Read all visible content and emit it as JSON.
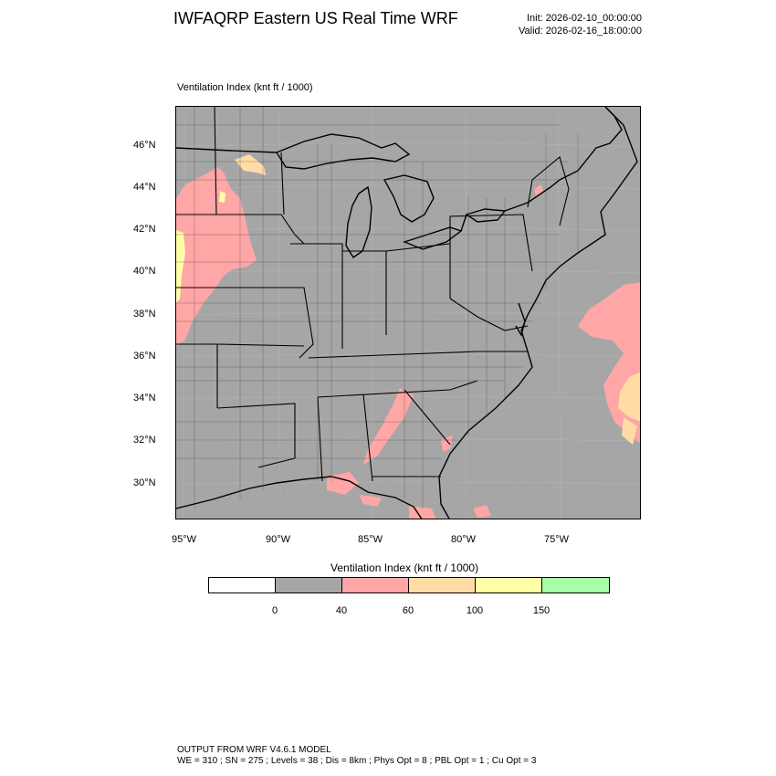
{
  "header": {
    "title": "IWFAQRP Eastern US Real Time WRF",
    "init": "Init: 2026-02-10_00:00:00",
    "valid": "Valid: 2026-02-16_18:00:00"
  },
  "field_label": "Ventilation Index   (knt ft / 1000)",
  "map": {
    "lat_labels": [
      "46°N",
      "44°N",
      "42°N",
      "40°N",
      "38°N",
      "36°N",
      "34°N",
      "32°N",
      "30°N"
    ],
    "lon_labels": [
      "95°W",
      "90°W",
      "85°W",
      "80°W",
      "75°W"
    ],
    "background_color": "#a6a6a6",
    "land_line_color": "#000000"
  },
  "colorbar": {
    "title": "Ventilation Index  (knt ft / 1000)",
    "colors": [
      "#ffffff",
      "#a6a6a6",
      "#ffa6a6",
      "#ffdca6",
      "#ffffa6",
      "#a6ffa6"
    ],
    "tick_labels": [
      "0",
      "40",
      "60",
      "100",
      "150"
    ]
  },
  "footer": {
    "line1": "OUTPUT FROM WRF V4.6.1 MODEL",
    "line2": "WE = 310 ; SN = 275 ; Levels = 38 ; Dis = 8km ; Phys Opt = 8 ; PBL Opt = 1 ; Cu Opt = 3"
  }
}
